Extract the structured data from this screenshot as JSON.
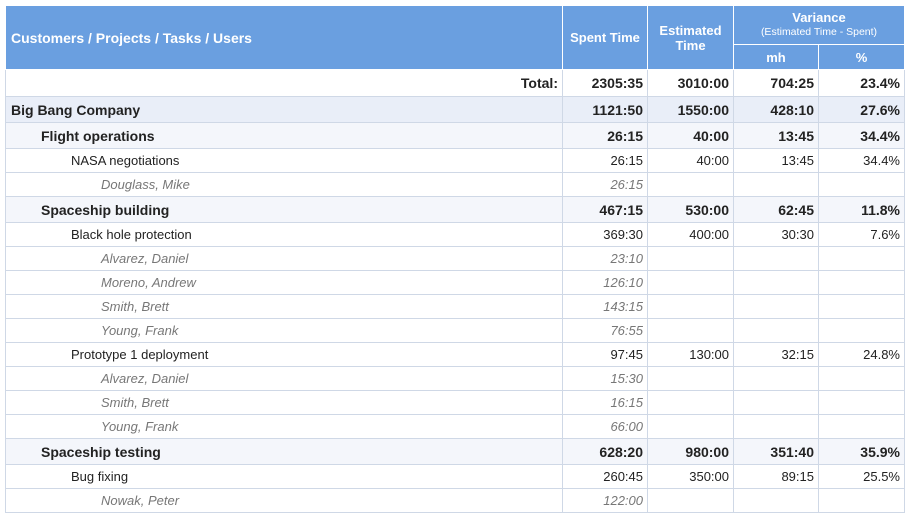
{
  "header": {
    "name": "Customers / Projects / Tasks / Users",
    "spent": "Spent Time",
    "estimated": "Estimated Time",
    "variance": "Variance",
    "variance_note": "(Estimated Time - Spent)",
    "mh": "mh",
    "pct": "%"
  },
  "total": {
    "label": "Total:",
    "spent": "2305:35",
    "estimated": "3010:00",
    "mh": "704:25",
    "pct": "23.4%"
  },
  "rows": [
    {
      "level": 0,
      "name": "Big Bang Company",
      "spent": "1121:50",
      "estimated": "1550:00",
      "mh": "428:10",
      "pct": "27.6%"
    },
    {
      "level": 1,
      "name": "Flight operations",
      "spent": "26:15",
      "estimated": "40:00",
      "mh": "13:45",
      "pct": "34.4%"
    },
    {
      "level": 2,
      "name": "NASA negotiations",
      "spent": "26:15",
      "estimated": "40:00",
      "mh": "13:45",
      "pct": "34.4%"
    },
    {
      "level": 3,
      "name": "Douglass, Mike",
      "spent": "26:15"
    },
    {
      "level": 1,
      "name": "Spaceship building",
      "spent": "467:15",
      "estimated": "530:00",
      "mh": "62:45",
      "pct": "11.8%"
    },
    {
      "level": 2,
      "name": "Black hole protection",
      "spent": "369:30",
      "estimated": "400:00",
      "mh": "30:30",
      "pct": "7.6%"
    },
    {
      "level": 3,
      "name": "Alvarez, Daniel",
      "spent": "23:10"
    },
    {
      "level": 3,
      "name": "Moreno, Andrew",
      "spent": "126:10"
    },
    {
      "level": 3,
      "name": "Smith, Brett",
      "spent": "143:15"
    },
    {
      "level": 3,
      "name": "Young, Frank",
      "spent": "76:55"
    },
    {
      "level": 2,
      "name": "Prototype 1 deployment",
      "spent": "97:45",
      "estimated": "130:00",
      "mh": "32:15",
      "pct": "24.8%"
    },
    {
      "level": 3,
      "name": "Alvarez, Daniel",
      "spent": "15:30"
    },
    {
      "level": 3,
      "name": "Smith, Brett",
      "spent": "16:15"
    },
    {
      "level": 3,
      "name": "Young, Frank",
      "spent": "66:00"
    },
    {
      "level": 1,
      "name": "Spaceship testing",
      "spent": "628:20",
      "estimated": "980:00",
      "mh": "351:40",
      "pct": "35.9%"
    },
    {
      "level": 2,
      "name": "Bug fixing",
      "spent": "260:45",
      "estimated": "350:00",
      "mh": "89:15",
      "pct": "25.5%"
    },
    {
      "level": 3,
      "name": "Nowak, Peter",
      "spent": "122:00"
    }
  ]
}
